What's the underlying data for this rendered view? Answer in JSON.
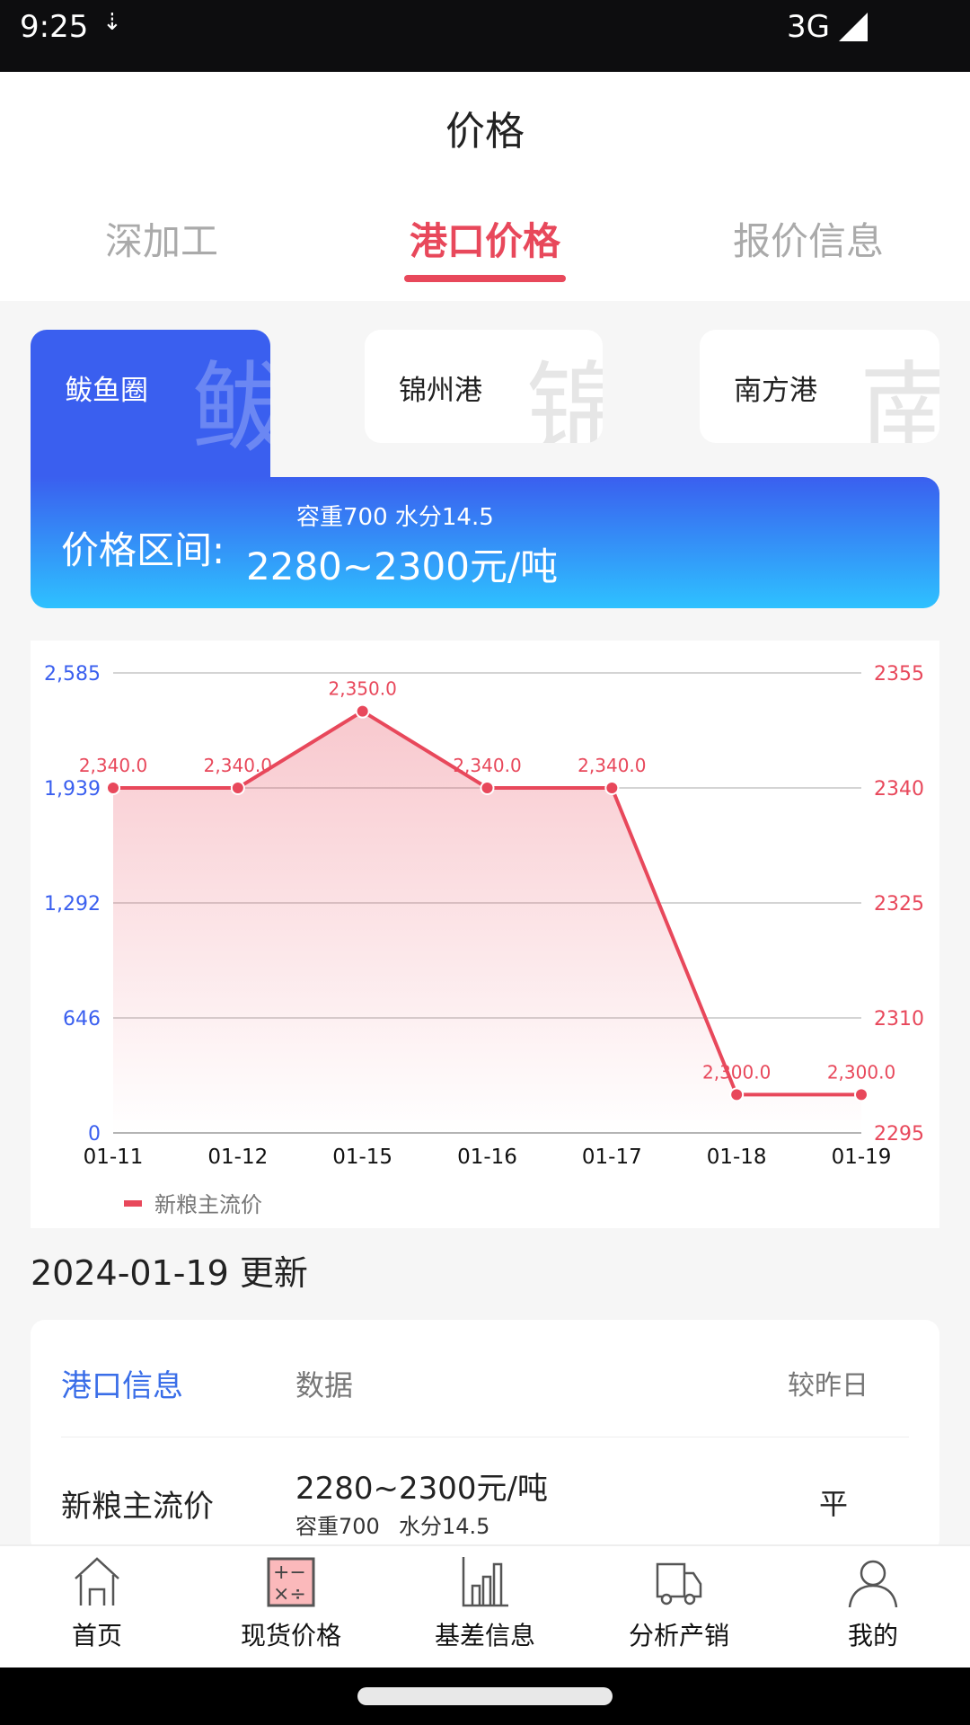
{
  "status": {
    "time": "9:25",
    "network": "3G"
  },
  "header": {
    "title": "价格",
    "tabs": [
      {
        "label": "深加工"
      },
      {
        "label": "港口价格",
        "active": true
      },
      {
        "label": "报价信息"
      }
    ]
  },
  "ports": [
    {
      "label": "鲅鱼圈",
      "watermark": "鲅",
      "selected": true
    },
    {
      "label": "锦州港",
      "watermark": "锦"
    },
    {
      "label": "南方港",
      "watermark": "南"
    }
  ],
  "banner": {
    "label": "价格区间:",
    "spec": "容重700 水分14.5",
    "range": "2280~2300元/吨"
  },
  "chart_data": {
    "type": "line",
    "categories": [
      "01-11",
      "01-12",
      "01-15",
      "01-16",
      "01-17",
      "01-18",
      "01-19"
    ],
    "series": [
      {
        "name": "新粮主流价",
        "values": [
          2340.0,
          2340.0,
          2350.0,
          2340.0,
          2340.0,
          2300.0,
          2300.0
        ],
        "color": "#e8485b",
        "axis": "right"
      }
    ],
    "data_labels": [
      "2,340.0",
      "2,340.0",
      "2,350.0",
      "2,340.0",
      "2,340.0",
      "2,300.0",
      "2,300.0"
    ],
    "left_ticks": [
      "2,585",
      "1,939",
      "1,292",
      "646",
      "0"
    ],
    "right_ticks": [
      "2355",
      "2340",
      "2325",
      "2310",
      "2295"
    ],
    "ylim_right": [
      2295,
      2355
    ],
    "ylim_left": [
      0,
      2585
    ],
    "grid": true,
    "legend": "bottom-left",
    "left_color": "#3a5fef"
  },
  "updated": "2024-01-19 更新",
  "table": {
    "headers": [
      "港口信息",
      "数据",
      "较昨日"
    ],
    "rows": [
      {
        "name": "新粮主流价",
        "value": "2280~2300元/吨",
        "spec1": "容重700",
        "spec2": "水分14.5",
        "change": "平"
      }
    ]
  },
  "nav": [
    {
      "label": "首页",
      "icon": "home-icon"
    },
    {
      "label": "现货价格",
      "icon": "calculator-icon",
      "active": true
    },
    {
      "label": "基差信息",
      "icon": "bar-chart-icon"
    },
    {
      "label": "分析产销",
      "icon": "truck-icon"
    },
    {
      "label": "我的",
      "icon": "user-icon"
    }
  ]
}
